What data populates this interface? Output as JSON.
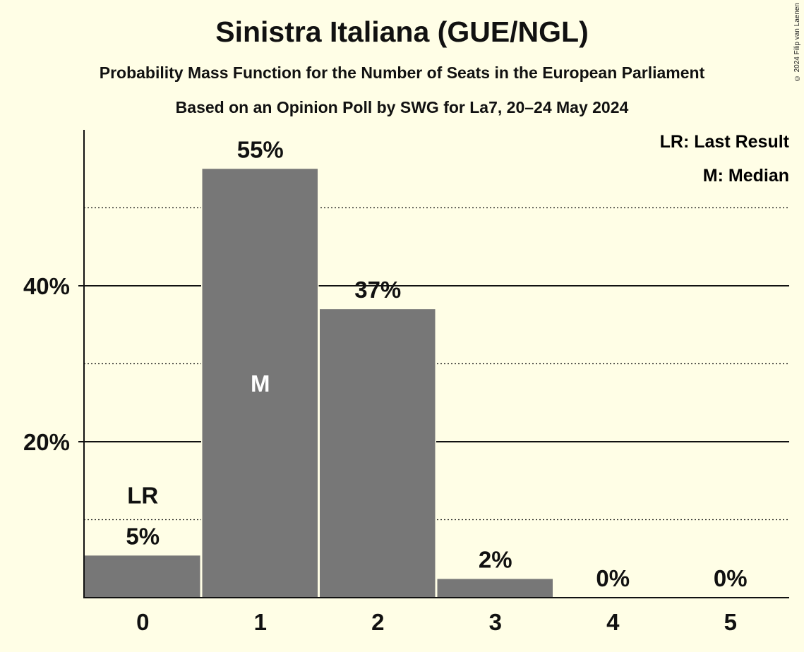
{
  "title": "Sinistra Italiana (GUE/NGL)",
  "subtitle_1": "Probability Mass Function for the Number of Seats in the European Parliament",
  "subtitle_2": "Based on an Opinion Poll by SWG for La7, 20–24 May 2024",
  "copyright": "© 2024 Filip van Laenen",
  "legend": {
    "lr": "LR: Last Result",
    "m": "M: Median"
  },
  "colors": {
    "background": "#FFFEE6",
    "bar": "#777777",
    "text": "#111111"
  },
  "chart_data": {
    "type": "bar",
    "title": "Sinistra Italiana (GUE/NGL)",
    "categories": [
      "0",
      "1",
      "2",
      "3",
      "4",
      "5"
    ],
    "values": [
      5.4,
      55,
      37,
      2.4,
      0,
      0
    ],
    "value_labels": [
      "5%",
      "55%",
      "37%",
      "2%",
      "0%",
      "0%"
    ],
    "ylim": [
      0,
      60
    ],
    "y_ticks": [
      20,
      40
    ],
    "y_tick_labels": [
      "20%",
      "40%"
    ],
    "y_minor_gridlines": [
      10,
      30,
      50
    ],
    "last_result_index": 0,
    "last_result_marker": "LR",
    "median_index": 1,
    "median_marker": "M",
    "legend_position": "top-right",
    "grid": true
  }
}
